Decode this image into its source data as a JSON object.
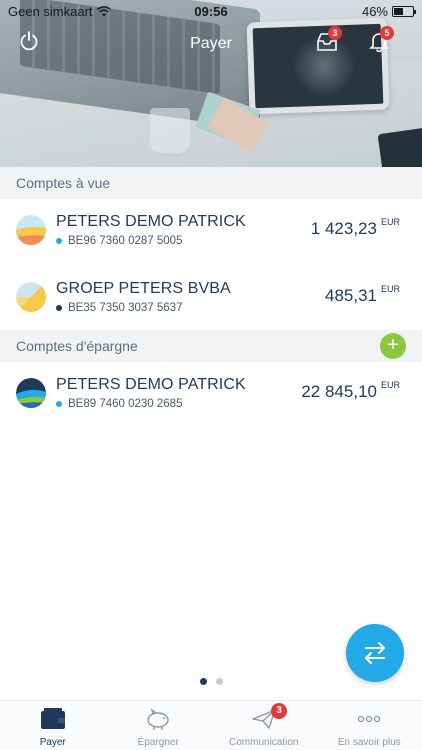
{
  "status_bar": {
    "carrier": "Geen simkaart",
    "time": "09:56",
    "battery": "46%",
    "battery_level": 0.46
  },
  "nav": {
    "title": "Payer",
    "inbox_badge": "3",
    "notifications_badge": "5"
  },
  "sections": {
    "current_accounts": "Comptes à vue",
    "savings_accounts": "Comptes d'épargne",
    "add_symbol": "+"
  },
  "accounts": [
    {
      "name": "PETERS DEMO PATRICK",
      "iban": "BE96 7360 0287 5005",
      "amount": "1 423,23",
      "currency": "EUR",
      "dot_color": "#22a9e6"
    },
    {
      "name": "GROEP PETERS BVBA",
      "iban": "BE35 7350 3037 5637",
      "amount": "485,31",
      "currency": "EUR",
      "dot_color": "#1f3a5a"
    },
    {
      "name": "PETERS DEMO PATRICK",
      "iban": "BE89 7460 0230 2685",
      "amount": "22 845,10",
      "currency": "EUR",
      "dot_color": "#22a9e6"
    }
  ],
  "pager": {
    "pages": 2,
    "active": 1
  },
  "tabbar": {
    "items": [
      {
        "label": "Payer",
        "icon": "wallet-icon",
        "active": true
      },
      {
        "label": "Épargner",
        "icon": "piggy-bank-icon",
        "active": false
      },
      {
        "label": "Communication",
        "icon": "paper-plane-icon",
        "active": false,
        "badge": "3"
      },
      {
        "label": "En savoir plus",
        "icon": "more-dots-icon",
        "active": false
      }
    ]
  },
  "colors": {
    "primary": "#1f3a5a",
    "accent": "#22a9e6",
    "add_green": "#8dc63f",
    "badge_red": "#e53935"
  }
}
